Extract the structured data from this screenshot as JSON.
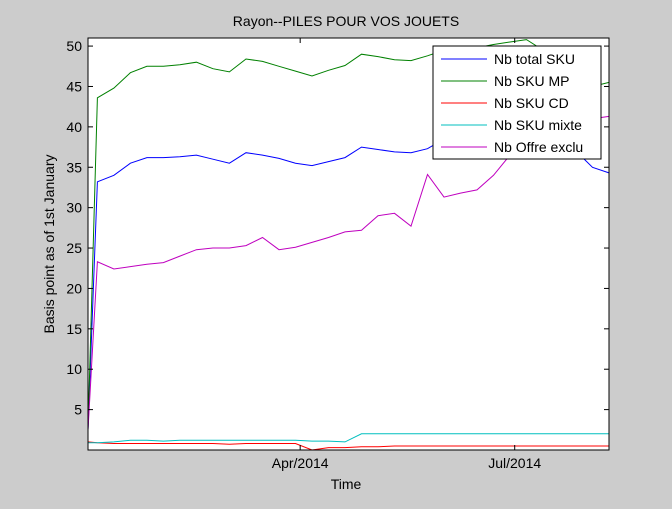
{
  "chart_data": {
    "type": "line",
    "title": "Rayon--PILES POUR VOS JOUETS",
    "xlabel": "Time",
    "ylabel": "Basis point as of 1st January",
    "x_ticks": [
      {
        "label": "Apr/2014",
        "date": "2014-04-01"
      },
      {
        "label": "Jul/2014",
        "date": "2014-07-01"
      }
    ],
    "xlim": [
      "2014-01-01",
      "2014-08-10"
    ],
    "ylim": [
      0,
      51
    ],
    "y_ticks": [
      5,
      10,
      15,
      20,
      25,
      30,
      35,
      40,
      45,
      50
    ],
    "grid": false,
    "legend_position": "top-right",
    "x": [
      "2014-01-01",
      "2014-01-05",
      "2014-01-12",
      "2014-01-19",
      "2014-01-26",
      "2014-02-02",
      "2014-02-09",
      "2014-02-16",
      "2014-02-23",
      "2014-03-02",
      "2014-03-09",
      "2014-03-16",
      "2014-03-23",
      "2014-03-30",
      "2014-04-06",
      "2014-04-13",
      "2014-04-20",
      "2014-04-27",
      "2014-05-04",
      "2014-05-11",
      "2014-05-18",
      "2014-05-25",
      "2014-06-01",
      "2014-06-08",
      "2014-06-15",
      "2014-06-22",
      "2014-06-29",
      "2014-07-06",
      "2014-07-13",
      "2014-07-20",
      "2014-07-27",
      "2014-08-03",
      "2014-08-10"
    ],
    "series": [
      {
        "name": "Nb total SKU",
        "color": "#0000ff",
        "values": [
          2.5,
          33.2,
          34.0,
          35.5,
          36.2,
          36.2,
          36.3,
          36.5,
          36.0,
          35.5,
          36.8,
          36.5,
          36.1,
          35.5,
          35.2,
          35.7,
          36.2,
          37.5,
          37.2,
          36.9,
          36.8,
          37.3,
          38.5,
          38.0,
          38.2,
          38.6,
          39.2,
          39.0,
          38.5,
          38.0,
          37.0,
          35.0,
          34.3
        ]
      },
      {
        "name": "Nb SKU MP",
        "color": "#008000",
        "values": [
          2.5,
          43.6,
          44.8,
          46.7,
          47.5,
          47.5,
          47.7,
          48.0,
          47.2,
          46.8,
          48.4,
          48.1,
          47.5,
          46.9,
          46.3,
          47.0,
          47.6,
          49.0,
          48.7,
          48.3,
          48.2,
          48.8,
          49.5,
          49.3,
          49.8,
          50.2,
          50.5,
          50.8,
          49.5,
          47.5,
          46.5,
          45.0,
          45.5
        ]
      },
      {
        "name": "Nb SKU CD",
        "color": "#ff0000",
        "values": [
          1.0,
          0.9,
          0.8,
          0.8,
          0.8,
          0.8,
          0.8,
          0.8,
          0.8,
          0.7,
          0.8,
          0.8,
          0.8,
          0.8,
          0.0,
          0.3,
          0.3,
          0.4,
          0.4,
          0.5,
          0.5,
          0.5,
          0.5,
          0.5,
          0.5,
          0.5,
          0.5,
          0.5,
          0.5,
          0.5,
          0.5,
          0.5,
          0.5
        ]
      },
      {
        "name": "Nb SKU mixte",
        "color": "#00bfbf",
        "values": [
          0.9,
          0.9,
          1.0,
          1.2,
          1.2,
          1.1,
          1.2,
          1.2,
          1.2,
          1.2,
          1.2,
          1.2,
          1.2,
          1.2,
          1.1,
          1.1,
          1.0,
          2.0,
          2.0,
          2.0,
          2.0,
          2.0,
          2.0,
          2.0,
          2.0,
          2.0,
          2.0,
          2.0,
          2.0,
          2.0,
          2.0,
          2.0,
          2.0
        ]
      },
      {
        "name": "Nb Offre exclu",
        "color": "#bf00bf",
        "values": [
          2.5,
          23.3,
          22.4,
          22.7,
          23.0,
          23.2,
          24.0,
          24.8,
          25.0,
          25.0,
          25.3,
          26.3,
          24.8,
          25.1,
          25.7,
          26.3,
          27.0,
          27.2,
          29.0,
          29.3,
          27.7,
          34.1,
          31.3,
          31.8,
          32.2,
          34.0,
          36.5,
          38.8,
          39.6,
          40.0,
          40.6,
          41.0,
          41.3
        ]
      }
    ]
  }
}
